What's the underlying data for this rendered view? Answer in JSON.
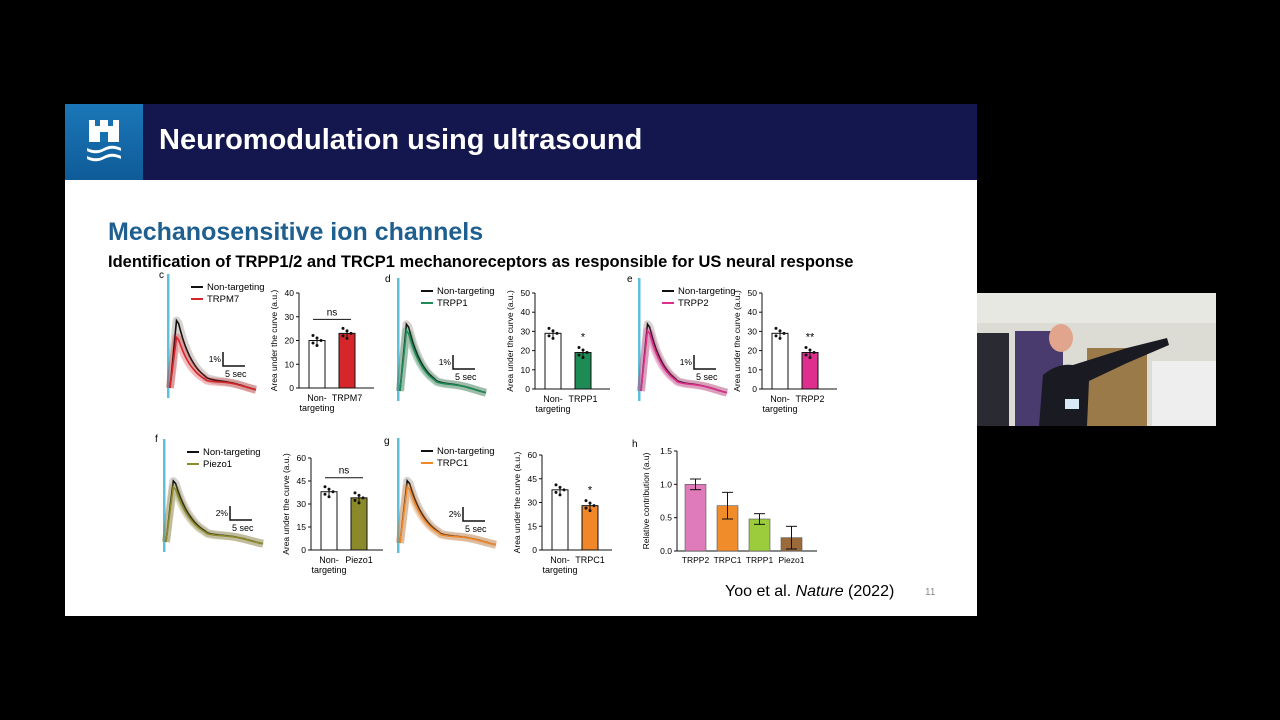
{
  "slide": {
    "title": "Neuromodulation using ultrasound",
    "section_heading": "Mechanosensitive ion channels",
    "subheading": "Identification of TRPP1/2 and TRCP1 mechanoreceptors as responsible for US neural response",
    "citation_authors": "Yoo et al. ",
    "citation_journal": "Nature",
    "citation_year": " (2022)",
    "slide_number": "11",
    "logo_icon": "castle-icon"
  },
  "panels": [
    {
      "letter": "c",
      "legend": [
        "Non-targeting",
        "TRPM7"
      ],
      "color": "#d6262a",
      "scale_pct": "1%",
      "scale_time": "5 sec",
      "ylabel": "Area under the curve (a.u.)",
      "yticks": [
        "0",
        "10",
        "20",
        "30",
        "40"
      ],
      "ymax": 40,
      "bar_labels": [
        "Non-\ntargeting",
        "TRPM7"
      ],
      "values": [
        20,
        23
      ],
      "sig": "ns"
    },
    {
      "letter": "d",
      "legend": [
        "Non-targeting",
        "TRPP1"
      ],
      "color": "#1e8a56",
      "scale_pct": "1%",
      "scale_time": "5 sec",
      "ylabel": "Area under the curve (a.u.)",
      "yticks": [
        "0",
        "10",
        "20",
        "30",
        "40",
        "50"
      ],
      "ymax": 50,
      "bar_labels": [
        "Non-\ntargeting",
        "TRPP1"
      ],
      "values": [
        29,
        19
      ],
      "sig": "*"
    },
    {
      "letter": "e",
      "legend": [
        "Non-targeting",
        "TRPP2"
      ],
      "color": "#de2e8e",
      "scale_pct": "1%",
      "scale_time": "5 sec",
      "ylabel": "Area under the curve (a.u.)",
      "yticks": [
        "0",
        "10",
        "20",
        "30",
        "40",
        "50"
      ],
      "ymax": 50,
      "bar_labels": [
        "Non-\ntargeting",
        "TRPP2"
      ],
      "values": [
        29,
        19
      ],
      "sig": "**"
    },
    {
      "letter": "f",
      "legend": [
        "Non-targeting",
        "Piezo1"
      ],
      "color": "#8a8a2a",
      "scale_pct": "2%",
      "scale_time": "5 sec",
      "ylabel": "Area under the curve (a.u.)",
      "yticks": [
        "0",
        "15",
        "30",
        "45",
        "60"
      ],
      "ymax": 60,
      "bar_labels": [
        "Non-\ntargeting",
        "Piezo1"
      ],
      "values": [
        38,
        34
      ],
      "sig": "ns"
    },
    {
      "letter": "g",
      "legend": [
        "Non-targeting",
        "TRPC1"
      ],
      "color": "#f0882a",
      "scale_pct": "2%",
      "scale_time": "5 sec",
      "ylabel": "Area under the curve (a.u.)",
      "yticks": [
        "0",
        "15",
        "30",
        "45",
        "60"
      ],
      "ymax": 60,
      "bar_labels": [
        "Non-\ntargeting",
        "TRPC1"
      ],
      "values": [
        38,
        28
      ],
      "sig": "*"
    }
  ],
  "chart_data": {
    "type": "bar",
    "letter": "h",
    "categories": [
      "TRPP2",
      "TRPC1",
      "TRPP1",
      "Piezo1"
    ],
    "values": [
      1.0,
      0.68,
      0.48,
      0.2
    ],
    "errors": [
      0.08,
      0.2,
      0.08,
      0.17
    ],
    "colors": [
      "#e07bbb",
      "#f08c2a",
      "#9ccc3c",
      "#9a6a3a"
    ],
    "ylabel": "Relative contribution (a.u)",
    "yticks": [
      "0.0",
      "0.5",
      "1.0",
      "1.5"
    ],
    "ylim": [
      0,
      1.5
    ]
  },
  "webcam": {
    "label": "presenter-video"
  }
}
